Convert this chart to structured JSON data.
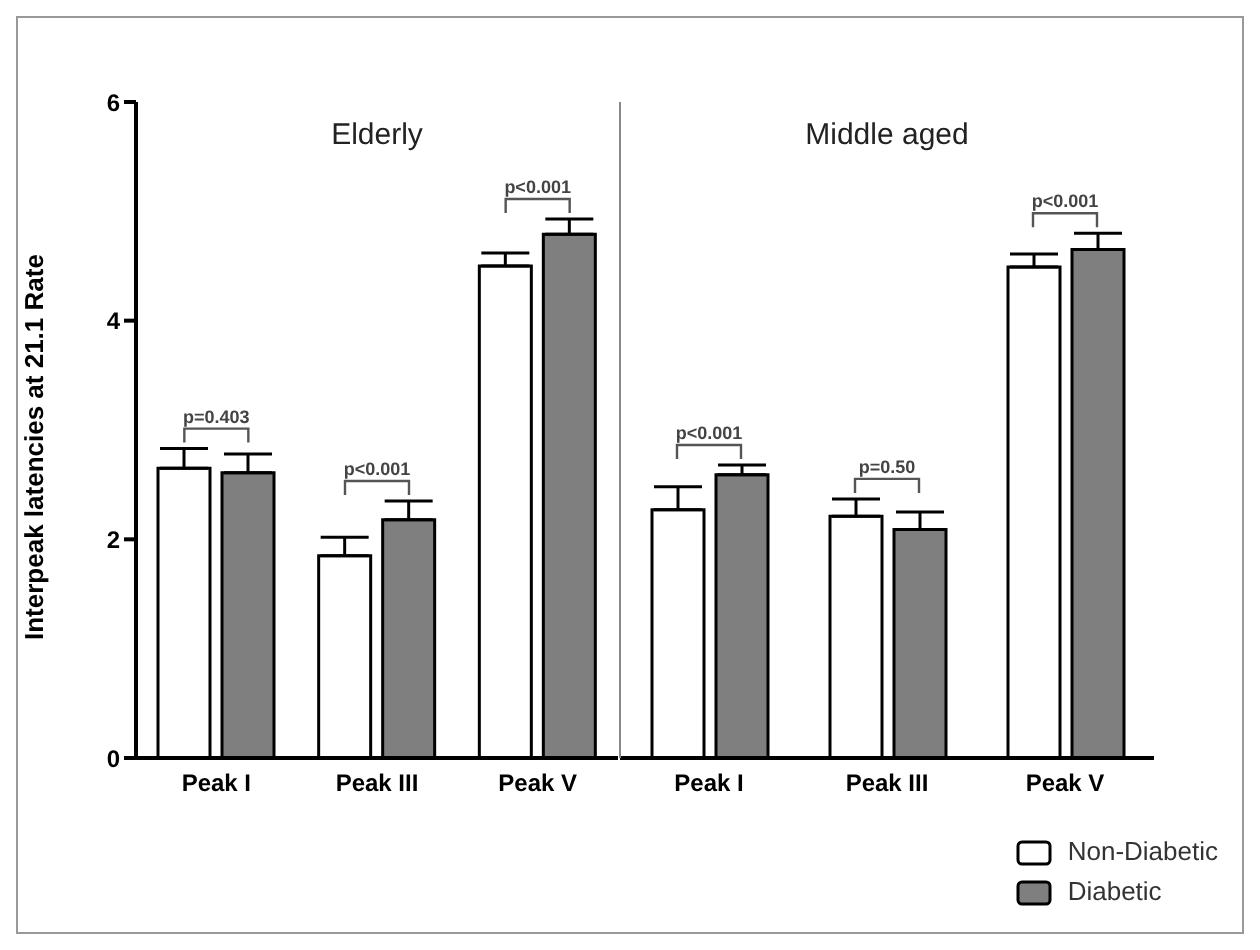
{
  "chart_data": [
    {
      "type": "bar",
      "title": "Elderly",
      "ylabel": "Interpeak latencies at 21.1 Rate",
      "categories": [
        "Peak I",
        "Peak III",
        "Peak V"
      ],
      "series": [
        {
          "color": "#ffffff",
          "values": [
            2.65,
            1.85,
            4.5
          ],
          "errors": [
            0.18,
            0.17,
            0.12
          ]
        },
        {
          "color": "#7f7f7f",
          "values": [
            2.61,
            2.18,
            4.79
          ],
          "errors": [
            0.17,
            0.17,
            0.14
          ]
        }
      ],
      "ylim": [
        0,
        6
      ],
      "yticks": [
        0,
        2,
        4,
        6
      ],
      "grid": false,
      "legend": false,
      "annotations": [
        "p=0.403",
        "p<0.001",
        "p<0.001"
      ]
    },
    {
      "type": "bar",
      "title": "Middle aged",
      "categories": [
        "Peak I",
        "Peak III",
        "Peak V"
      ],
      "series": [
        {
          "name": "Non-Diabetic",
          "color": "#ffffff",
          "values": [
            2.27,
            2.21,
            4.49
          ],
          "errors": [
            0.21,
            0.16,
            0.12
          ]
        },
        {
          "name": "Diabetic",
          "color": "#7f7f7f",
          "values": [
            2.59,
            2.09,
            4.65
          ],
          "errors": [
            0.09,
            0.16,
            0.15
          ]
        }
      ],
      "ylim": [
        0,
        6
      ],
      "yticks": [
        0,
        2,
        4,
        6
      ],
      "tick_labels": "x",
      "grid": false,
      "legend": "bottom right",
      "annotations": [
        "p<0.001",
        "p=0.50",
        "p<0.001"
      ]
    }
  ]
}
